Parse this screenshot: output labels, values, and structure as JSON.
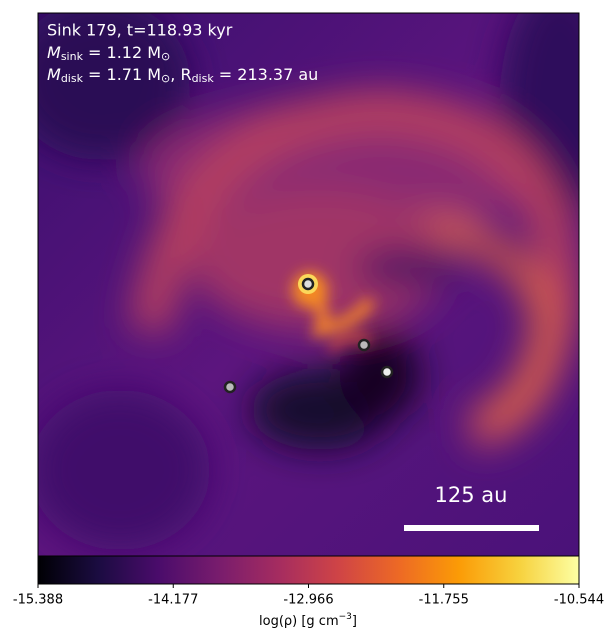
{
  "chart_data": {
    "type": "density_map",
    "title": "Sink 179, t=118.93 kyr",
    "annotations": {
      "sink_mass": [
        "M",
        "sink",
        " = 1.12 M",
        "⊙"
      ],
      "disk": [
        "M",
        "disk",
        " = 1.71 M",
        "⊙",
        ", R",
        "disk",
        " = 213.37 au"
      ]
    },
    "scale_bar": "125 au",
    "colormap": "inferno",
    "clim": [
      -15.388,
      -10.544
    ],
    "cticks": [
      -15.388,
      -14.177,
      -12.966,
      -11.755,
      -10.544
    ],
    "colorbar_label": [
      "log(ρ) [g cm",
      "−3",
      "]"
    ]
  }
}
